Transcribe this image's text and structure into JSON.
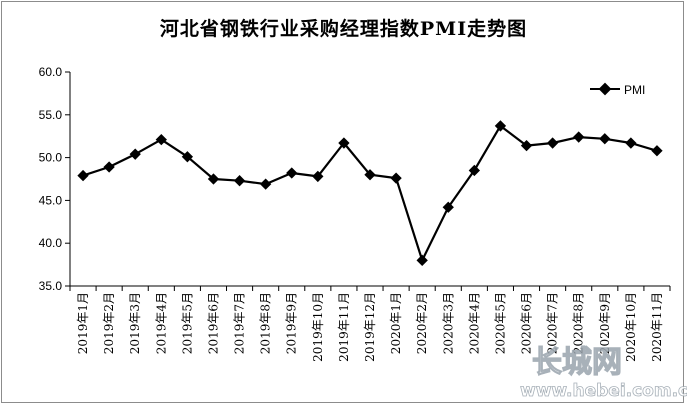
{
  "chart_data": {
    "type": "line",
    "title": "河北省钢铁行业采购经理指数PMI走势图",
    "xlabel": "",
    "ylabel": "",
    "ylim": [
      35.0,
      60.0
    ],
    "yticks": [
      "60.0",
      "55.0",
      "50.0",
      "45.0",
      "40.0",
      "35.0"
    ],
    "categories": [
      "2019年1月",
      "2019年2月",
      "2019年3月",
      "2019年4月",
      "2019年5月",
      "2019年6月",
      "2019年7月",
      "2019年8月",
      "2019年9月",
      "2019年10月",
      "2019年11月",
      "2019年12月",
      "2020年1月",
      "2020年2月",
      "2020年3月",
      "2020年4月",
      "2020年5月",
      "2020年6月",
      "2020年7月",
      "2020年8月",
      "2020年9月",
      "2020年10月",
      "2020年11月"
    ],
    "series": [
      {
        "name": "PMI",
        "color": "#000000",
        "marker": "diamond",
        "values": [
          47.9,
          48.9,
          50.4,
          52.1,
          50.1,
          47.5,
          47.3,
          46.9,
          48.2,
          47.8,
          51.7,
          48.0,
          47.6,
          38.0,
          44.2,
          48.5,
          53.7,
          51.4,
          51.7,
          52.4,
          52.2,
          51.7,
          50.8
        ]
      }
    ],
    "grid": false,
    "legend": "top-right"
  },
  "watermark": {
    "logo_text": "长城网",
    "url_text": "www.hebei.com.cn"
  }
}
